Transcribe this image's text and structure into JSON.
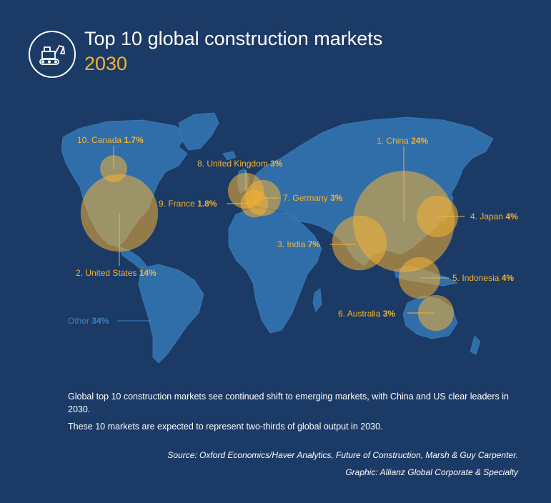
{
  "header": {
    "title": "Top 10 global construction markets",
    "year": "2030",
    "icon": "excavator-icon"
  },
  "colors": {
    "background": "#1b3a66",
    "land": "#2f6ea8",
    "accent": "#f5b333",
    "other": "#3c82c2"
  },
  "markets": [
    {
      "rank": "1.",
      "name": "China",
      "share": "24%",
      "value": 24
    },
    {
      "rank": "2.",
      "name": "United States",
      "share": "14%",
      "value": 14
    },
    {
      "rank": "3.",
      "name": "India",
      "share": "7%",
      "value": 7
    },
    {
      "rank": "4.",
      "name": "Japan",
      "share": "4%",
      "value": 4
    },
    {
      "rank": "5.",
      "name": "Indonesia",
      "share": "4%",
      "value": 4
    },
    {
      "rank": "6.",
      "name": "Australia",
      "share": "3%",
      "value": 3
    },
    {
      "rank": "7.",
      "name": "Germany",
      "share": "3%",
      "value": 3
    },
    {
      "rank": "8.",
      "name": "United Kingdom",
      "share": "3%",
      "value": 3
    },
    {
      "rank": "9.",
      "name": "France",
      "share": "1.8%",
      "value": 1.8
    },
    {
      "rank": "10.",
      "name": "Canada",
      "share": "1.7%",
      "value": 1.7
    }
  ],
  "other": {
    "name": "Other",
    "share": "34%",
    "value": 34
  },
  "body": {
    "paragraph1": "Global top 10 construction markets see continued shift to emerging markets, with China and US clear leaders in 2030.",
    "paragraph2": "These 10 markets are expected to represent two-thirds of global output in 2030."
  },
  "footer": {
    "source": "Source: Oxford Economics/Haver Analytics, Future of Construction, Marsh & Guy Carpenter.",
    "graphic": "Graphic: Allianz Global Corporate & Specialty"
  }
}
